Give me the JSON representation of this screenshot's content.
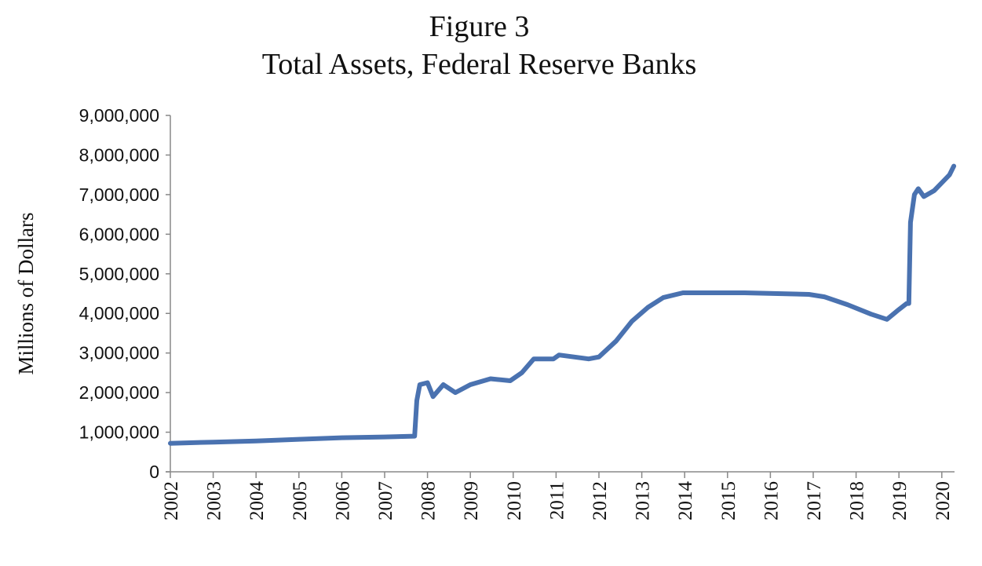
{
  "chart_data": {
    "type": "line",
    "title": "Figure 3",
    "subtitle": "Total Assets, Federal Reserve Banks",
    "xlabel": "",
    "ylabel": "Millions of Dollars",
    "xlim": [
      2002,
      2020.3
    ],
    "ylim": [
      0,
      9000000
    ],
    "grid": false,
    "legend": "none",
    "line_color": "#4a72b0",
    "x_tick_labels": [
      "2002",
      "2003",
      "2004",
      "2005",
      "2006",
      "2007",
      "2008",
      "2009",
      "2010",
      "2011",
      "2012",
      "2013",
      "2014",
      "2015",
      "2016",
      "2017",
      "2018",
      "2019",
      "2020"
    ],
    "y_tick_labels": [
      "0",
      "1,000,000",
      "2,000,000",
      "3,000,000",
      "4,000,000",
      "5,000,000",
      "6,000,000",
      "7,000,000",
      "8,000,000",
      "9,000,000"
    ],
    "series": [
      {
        "x": [
          2002.0,
          2003.0,
          2004.0,
          2005.0,
          2006.0,
          2007.0,
          2007.7,
          2007.75,
          2007.82,
          2008.0,
          2008.13,
          2008.37,
          2008.65,
          2009.0,
          2009.47,
          2009.93,
          2010.2,
          2010.48,
          2010.94,
          2011.07,
          2011.76,
          2012.0,
          2012.4,
          2012.77,
          2013.14,
          2013.5,
          2013.96,
          2015.4,
          2016.9,
          2017.26,
          2017.8,
          2018.35,
          2018.72,
          2019.0,
          2019.18,
          2019.23,
          2019.27,
          2019.36,
          2019.45,
          2019.58,
          2019.82,
          2020.0,
          2020.18,
          2020.28
        ],
        "y": [
          720000,
          750000,
          780000,
          820000,
          860000,
          880000,
          900000,
          1800000,
          2200000,
          2250000,
          1900000,
          2200000,
          2000000,
          2200000,
          2350000,
          2300000,
          2500000,
          2850000,
          2850000,
          2950000,
          2850000,
          2900000,
          3300000,
          3800000,
          4150000,
          4400000,
          4520000,
          4520000,
          4480000,
          4420000,
          4220000,
          3980000,
          3850000,
          4100000,
          4250000,
          4250000,
          6300000,
          7000000,
          7150000,
          6950000,
          7100000,
          7300000,
          7500000,
          7720000
        ]
      }
    ]
  }
}
